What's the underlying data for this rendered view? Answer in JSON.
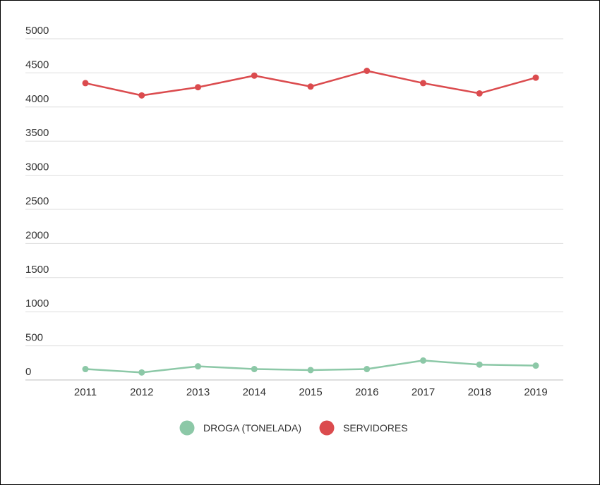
{
  "chart_data": {
    "type": "line",
    "categories": [
      "2011",
      "2012",
      "2013",
      "2014",
      "2015",
      "2016",
      "2017",
      "2018",
      "2019"
    ],
    "series": [
      {
        "name": "DROGA (TONELADA)",
        "color": "#8cc8a7",
        "values": [
          160,
          110,
          200,
          160,
          145,
          160,
          285,
          225,
          210
        ]
      },
      {
        "name": "SERVIDORES",
        "color": "#db4b4e",
        "values": [
          4350,
          4170,
          4290,
          4460,
          4300,
          4530,
          4350,
          4200,
          4430
        ]
      }
    ],
    "ylim": [
      0,
      5000
    ],
    "yticks": [
      0,
      500,
      1000,
      1500,
      2000,
      2500,
      3000,
      3500,
      4000,
      4500,
      5000
    ],
    "grid": true,
    "legend_position": "bottom"
  }
}
